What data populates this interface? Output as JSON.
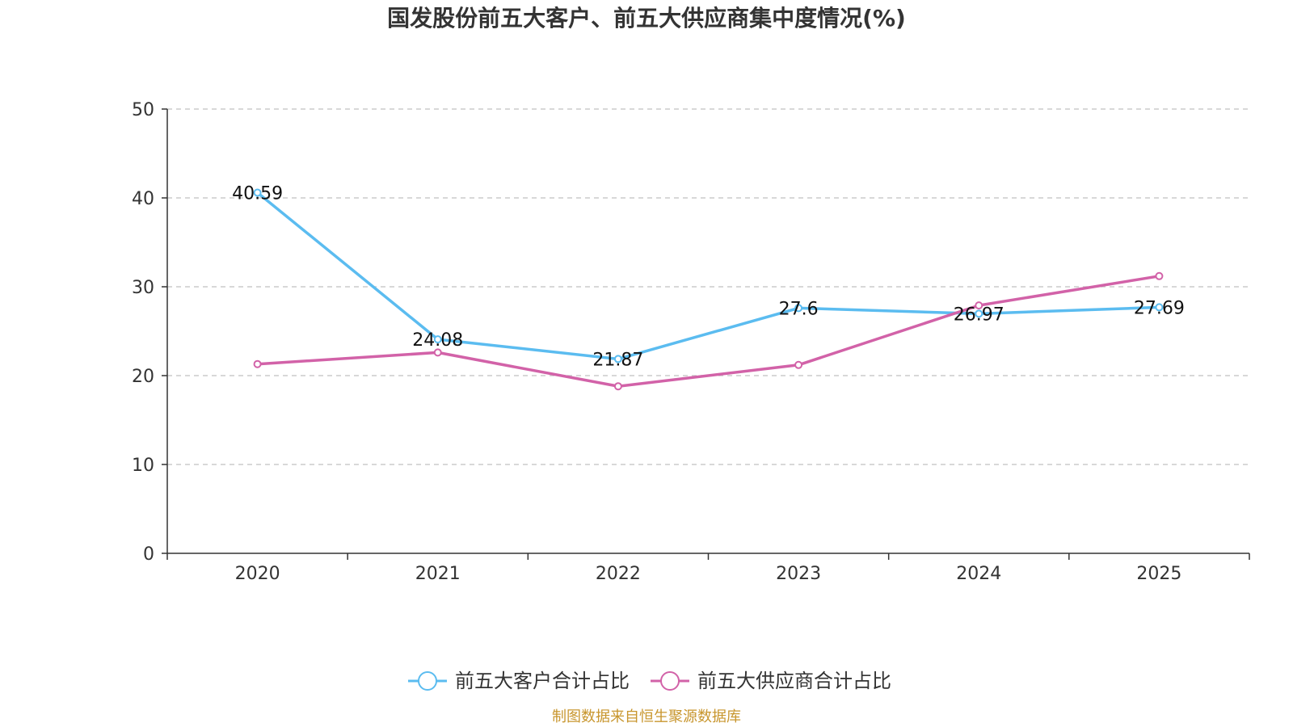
{
  "chart_data": {
    "type": "line",
    "title": "国发股份前五大客户、前五大供应商集中度情况(%)",
    "categories": [
      "2020",
      "2021",
      "2022",
      "2023",
      "2024",
      "2025"
    ],
    "ylim": [
      0,
      50
    ],
    "yticks": [
      0,
      10,
      20,
      30,
      40,
      50
    ],
    "xlabel": "",
    "ylabel": "",
    "grid": true,
    "legend_position": "bottom-center",
    "series": [
      {
        "name": "前五大客户合计占比",
        "color": "#5bbcf0",
        "values": [
          40.59,
          24.08,
          21.87,
          27.6,
          26.97,
          27.69
        ],
        "labels": [
          "40.59",
          "24.08",
          "21.87",
          "27.6",
          "26.97",
          "27.69"
        ]
      },
      {
        "name": "前五大供应商合计占比",
        "color": "#d262a8",
        "values": [
          21.3,
          22.6,
          18.8,
          21.2,
          27.9,
          31.2
        ],
        "labels": []
      }
    ]
  },
  "source": "制图数据来自恒生聚源数据库",
  "colors": {
    "axis": "#333333",
    "grid": "#cccccc",
    "source": "#c8962e"
  }
}
